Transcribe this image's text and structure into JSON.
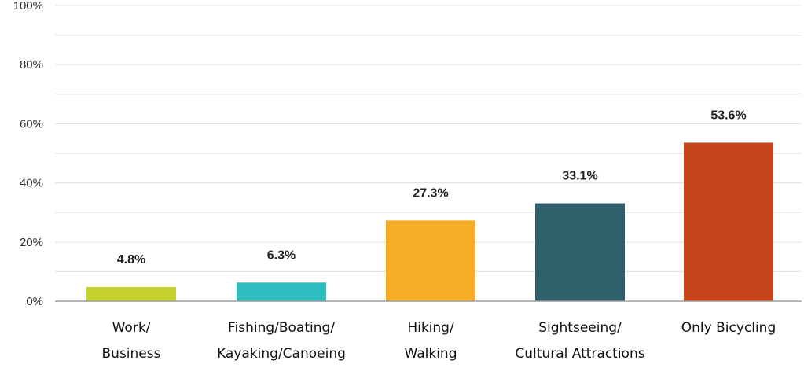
{
  "chart_data": {
    "type": "bar",
    "title": "",
    "xlabel": "",
    "ylabel": "",
    "ylim": [
      0,
      100
    ],
    "grid": true,
    "yticks": [
      "0%",
      "20%",
      "40%",
      "60%",
      "80%",
      "100%"
    ],
    "categories": [
      [
        "Work/",
        "Business"
      ],
      [
        "Fishing/Boating/",
        "Kayaking/Canoeing"
      ],
      [
        "Hiking/",
        "Walking"
      ],
      [
        "Sightseeing/",
        "Cultural Attractions"
      ],
      [
        "Only Bicycling"
      ]
    ],
    "values": [
      4.8,
      6.3,
      27.3,
      33.1,
      53.6
    ],
    "data_labels": [
      "4.8%",
      "6.3%",
      "27.3%",
      "33.1%",
      "53.6%"
    ],
    "colors": [
      "#c5d12e",
      "#2dbdbf",
      "#f6ac24",
      "#2e5f6b",
      "#c8441a"
    ],
    "grid_color": "#e3e3e3",
    "axis_color": "#9a9a9a"
  }
}
